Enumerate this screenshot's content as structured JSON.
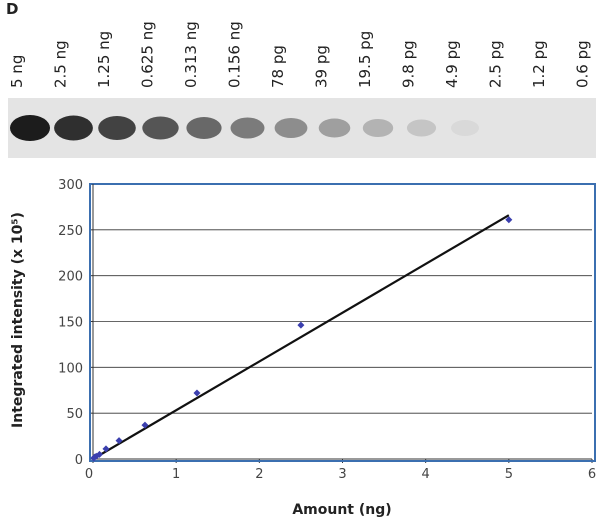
{
  "panel_label": "D",
  "lanes": [
    "5 ng",
    "2.5 ng",
    "1.25 ng",
    "0.625 ng",
    "0.313 ng",
    "0.156 ng",
    "78 pg",
    "39 pg",
    "19.5 pg",
    "9.8 pg",
    "4.9 pg",
    "2.5 pg",
    "1.2 pg",
    "0.6 pg"
  ],
  "chart_data": {
    "type": "scatter",
    "x_label": "Amount (ng)",
    "y_label": "Integrated intensity (x 10⁵)",
    "x": [
      5,
      2.5,
      1.25,
      0.625,
      0.313,
      0.156,
      0.078,
      0.039,
      0.0195,
      0.0098
    ],
    "values": [
      261,
      146,
      72,
      37,
      20,
      11,
      5,
      3,
      2,
      1
    ],
    "color": "#3b3fae",
    "trendline": {
      "x": [
        0,
        5
      ],
      "values": [
        0,
        266
      ],
      "color": "#111111"
    },
    "xlim": [
      0,
      6
    ],
    "xticks": [
      0,
      1,
      2,
      3,
      4,
      5,
      6
    ],
    "ylim": [
      0,
      300
    ],
    "yticks": [
      0,
      50,
      100,
      150,
      200,
      250,
      300
    ],
    "grid": true,
    "frame_color": "#3b6fb0"
  }
}
